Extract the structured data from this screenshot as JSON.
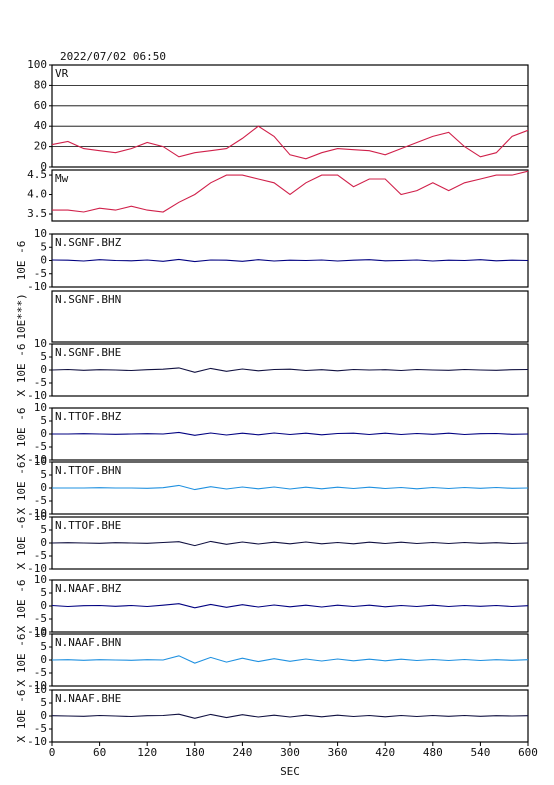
{
  "chart_data": [
    {
      "type": "line",
      "title": "2022/07/02 06:50",
      "label": "VR",
      "grid": true,
      "xlim": [
        0,
        600
      ],
      "ylim": [
        0,
        100
      ],
      "yticks": [
        0,
        20,
        40,
        60,
        80,
        100
      ],
      "x": [
        0,
        20,
        40,
        60,
        80,
        100,
        120,
        140,
        160,
        180,
        200,
        220,
        240,
        260,
        280,
        300,
        320,
        340,
        360,
        380,
        400,
        420,
        440,
        460,
        480,
        500,
        520,
        540,
        560,
        580,
        600
      ],
      "series": [
        {
          "color": "#d0204a",
          "values": [
            22,
            25,
            18,
            16,
            14,
            18,
            24,
            20,
            10,
            14,
            16,
            18,
            28,
            40,
            30,
            12,
            8,
            14,
            18,
            17,
            16,
            12,
            18,
            24,
            30,
            34,
            20,
            10,
            14,
            30,
            36
          ]
        }
      ]
    },
    {
      "type": "line",
      "label": "Mw",
      "xlim": [
        0,
        600
      ],
      "ylim": [
        3.32,
        4.63
      ],
      "yticks": [
        {
          "value": 3.5,
          "label": "3.5"
        },
        {
          "value": 4.0,
          "label": "4.0"
        },
        {
          "value": 4.5,
          "label": "4.5"
        }
      ],
      "x": [
        0,
        20,
        40,
        60,
        80,
        100,
        120,
        140,
        160,
        180,
        200,
        220,
        240,
        260,
        280,
        300,
        320,
        340,
        360,
        380,
        400,
        420,
        440,
        460,
        480,
        500,
        520,
        540,
        560,
        580,
        600
      ],
      "series": [
        {
          "color": "#d0204a",
          "values": [
            3.6,
            3.6,
            3.55,
            3.65,
            3.6,
            3.7,
            3.6,
            3.55,
            3.8,
            4.0,
            4.3,
            4.5,
            4.5,
            4.4,
            4.3,
            4.0,
            4.3,
            4.5,
            4.5,
            4.2,
            4.4,
            4.4,
            4.0,
            4.1,
            4.3,
            4.1,
            4.3,
            4.4,
            4.5,
            4.5,
            4.6
          ]
        }
      ]
    },
    {
      "type": "line",
      "label": "N.SGNF.BHZ",
      "ylabel": "10E -6",
      "xlim": [
        0,
        600
      ],
      "ylim": [
        -10,
        10
      ],
      "yticks": [
        -10,
        -5,
        0,
        5,
        10
      ],
      "x": [
        0,
        20,
        40,
        60,
        80,
        100,
        120,
        140,
        160,
        180,
        200,
        220,
        240,
        260,
        280,
        300,
        320,
        340,
        360,
        380,
        400,
        420,
        440,
        460,
        480,
        500,
        520,
        540,
        560,
        580,
        600
      ],
      "series": [
        {
          "color": "#000080",
          "values": [
            0.2,
            0.1,
            -0.2,
            0.3,
            0,
            -0.1,
            0.2,
            -0.3,
            0.4,
            -0.4,
            0.2,
            0.1,
            -0.3,
            0.3,
            -0.2,
            0.1,
            0,
            0.2,
            -0.2,
            0.1,
            0.3,
            -0.1,
            0,
            0.2,
            -0.2,
            0.1,
            0,
            0.3,
            -0.1,
            0.1,
            0
          ]
        }
      ]
    },
    {
      "type": "line",
      "label": "N.SGNF.BHN",
      "ylabel": "10E***)",
      "xlim": [
        0,
        600
      ],
      "series": []
    },
    {
      "type": "line",
      "label": "N.SGNF.BHE",
      "ylabel": "X 10E -6",
      "xlim": [
        0,
        600
      ],
      "ylim": [
        -10,
        10
      ],
      "yticks": [
        -10,
        -5,
        0,
        5,
        10
      ],
      "x": [
        0,
        20,
        40,
        60,
        80,
        100,
        120,
        140,
        160,
        180,
        200,
        220,
        240,
        260,
        280,
        300,
        320,
        340,
        360,
        380,
        400,
        420,
        440,
        460,
        480,
        500,
        520,
        540,
        560,
        580,
        600
      ],
      "series": [
        {
          "color": "#101040",
          "values": [
            0,
            0.2,
            -0.1,
            0.1,
            0,
            -0.2,
            0.1,
            0.3,
            0.8,
            -0.9,
            0.6,
            -0.5,
            0.4,
            -0.3,
            0.2,
            0.3,
            -0.2,
            0.1,
            -0.3,
            0.2,
            0,
            0.1,
            -0.2,
            0.2,
            0,
            -0.1,
            0.2,
            0,
            -0.1,
            0.1,
            0.2
          ]
        }
      ]
    },
    {
      "type": "line",
      "label": "N.TTOF.BHZ",
      "ylabel": "X 10E -6",
      "xlim": [
        0,
        600
      ],
      "ylim": [
        -10,
        10
      ],
      "yticks": [
        -10,
        -5,
        0,
        5,
        10
      ],
      "x": [
        0,
        20,
        40,
        60,
        80,
        100,
        120,
        140,
        160,
        180,
        200,
        220,
        240,
        260,
        280,
        300,
        320,
        340,
        360,
        380,
        400,
        420,
        440,
        460,
        480,
        500,
        520,
        540,
        560,
        580,
        600
      ],
      "series": [
        {
          "color": "#000080",
          "values": [
            0,
            0,
            0.1,
            0,
            -0.1,
            0,
            0.1,
            0,
            0.6,
            -0.5,
            0.4,
            -0.4,
            0.3,
            -0.3,
            0.4,
            -0.2,
            0.3,
            -0.3,
            0.2,
            0.3,
            -0.2,
            0.3,
            -0.2,
            0.2,
            -0.1,
            0.3,
            -0.2,
            0.1,
            0.2,
            -0.1,
            0
          ]
        }
      ]
    },
    {
      "type": "line",
      "label": "N.TTOF.BHN",
      "ylabel": "X 10E -6",
      "xlim": [
        0,
        600
      ],
      "ylim": [
        -10,
        10
      ],
      "yticks": [
        -10,
        -5,
        0,
        5,
        10
      ],
      "x": [
        0,
        20,
        40,
        60,
        80,
        100,
        120,
        140,
        160,
        180,
        200,
        220,
        240,
        260,
        280,
        300,
        320,
        340,
        360,
        380,
        400,
        420,
        440,
        460,
        480,
        500,
        520,
        540,
        560,
        580,
        600
      ],
      "series": [
        {
          "color": "#1e90e0",
          "values": [
            0,
            0,
            0,
            0.1,
            0,
            0,
            -0.1,
            0.1,
            1.0,
            -0.6,
            0.5,
            -0.4,
            0.4,
            -0.3,
            0.4,
            -0.4,
            0.3,
            -0.3,
            0.3,
            -0.2,
            0.3,
            -0.2,
            0.2,
            -0.3,
            0.2,
            -0.2,
            0.2,
            -0.1,
            0.2,
            -0.1,
            0
          ]
        }
      ]
    },
    {
      "type": "line",
      "label": "N.TTOF.BHE",
      "ylabel": "X 10E -6",
      "xlim": [
        0,
        600
      ],
      "ylim": [
        -10,
        10
      ],
      "yticks": [
        -10,
        -5,
        0,
        5,
        10
      ],
      "x": [
        0,
        20,
        40,
        60,
        80,
        100,
        120,
        140,
        160,
        180,
        200,
        220,
        240,
        260,
        280,
        300,
        320,
        340,
        360,
        380,
        400,
        420,
        440,
        460,
        480,
        500,
        520,
        540,
        560,
        580,
        600
      ],
      "series": [
        {
          "color": "#101040",
          "values": [
            0,
            0.1,
            0,
            -0.1,
            0.1,
            0,
            -0.1,
            0.2,
            0.5,
            -1.0,
            0.6,
            -0.5,
            0.4,
            -0.4,
            0.3,
            -0.3,
            0.4,
            -0.3,
            0.2,
            -0.3,
            0.3,
            -0.2,
            0.3,
            -0.2,
            0.2,
            -0.2,
            0.2,
            -0.1,
            0.1,
            -0.2,
            0
          ]
        }
      ]
    },
    {
      "type": "line",
      "label": "N.NAAF.BHZ",
      "ylabel": "X 10E -6",
      "xlim": [
        0,
        600
      ],
      "ylim": [
        -10,
        10
      ],
      "yticks": [
        -10,
        -5,
        0,
        5,
        10
      ],
      "x": [
        0,
        20,
        40,
        60,
        80,
        100,
        120,
        140,
        160,
        180,
        200,
        220,
        240,
        260,
        280,
        300,
        320,
        340,
        360,
        380,
        400,
        420,
        440,
        460,
        480,
        500,
        520,
        540,
        560,
        580,
        600
      ],
      "series": [
        {
          "color": "#000080",
          "values": [
            0.2,
            -0.2,
            0.1,
            0.2,
            -0.1,
            0.2,
            -0.2,
            0.3,
            0.9,
            -0.7,
            0.6,
            -0.5,
            0.5,
            -0.4,
            0.4,
            -0.3,
            0.3,
            -0.4,
            0.3,
            -0.2,
            0.3,
            -0.3,
            0.2,
            -0.2,
            0.3,
            -0.2,
            0.2,
            -0.1,
            0.2,
            -0.2,
            0.1
          ]
        }
      ]
    },
    {
      "type": "line",
      "label": "N.NAAF.BHN",
      "ylabel": "X 10E -6",
      "xlim": [
        0,
        600
      ],
      "ylim": [
        -10,
        10
      ],
      "yticks": [
        -10,
        -5,
        0,
        5,
        10
      ],
      "x": [
        0,
        20,
        40,
        60,
        80,
        100,
        120,
        140,
        160,
        180,
        200,
        220,
        240,
        260,
        280,
        300,
        320,
        340,
        360,
        380,
        400,
        420,
        440,
        460,
        480,
        500,
        520,
        540,
        560,
        580,
        600
      ],
      "series": [
        {
          "color": "#1e90e0",
          "values": [
            0,
            0.1,
            -0.1,
            0.1,
            0,
            -0.1,
            0.1,
            0,
            1.6,
            -1.2,
            1.0,
            -0.8,
            0.7,
            -0.6,
            0.5,
            -0.5,
            0.4,
            -0.4,
            0.4,
            -0.3,
            0.3,
            -0.3,
            0.3,
            -0.2,
            0.2,
            -0.2,
            0.2,
            -0.2,
            0.1,
            -0.1,
            0.1
          ]
        }
      ]
    },
    {
      "type": "line",
      "label": "N.NAAF.BHE",
      "ylabel": "X 10E -6",
      "x_label": "SEC",
      "xlim": [
        0,
        600
      ],
      "ylim": [
        -10,
        10
      ],
      "yticks": [
        -10,
        -5,
        0,
        5,
        10
      ],
      "xticks": [
        0,
        60,
        120,
        180,
        240,
        300,
        360,
        420,
        480,
        540,
        600
      ],
      "x": [
        0,
        20,
        40,
        60,
        80,
        100,
        120,
        140,
        160,
        180,
        200,
        220,
        240,
        260,
        280,
        300,
        320,
        340,
        360,
        380,
        400,
        420,
        440,
        460,
        480,
        500,
        520,
        540,
        560,
        580,
        600
      ],
      "series": [
        {
          "color": "#101040",
          "values": [
            0.1,
            0,
            -0.1,
            0.2,
            0,
            -0.2,
            0.1,
            0.2,
            0.7,
            -0.9,
            0.6,
            -0.6,
            0.5,
            -0.4,
            0.3,
            -0.4,
            0.3,
            -0.3,
            0.3,
            -0.2,
            0.2,
            -0.3,
            0.2,
            -0.2,
            0.2,
            -0.1,
            0.2,
            -0.1,
            0.1,
            0,
            0.1
          ]
        }
      ]
    }
  ]
}
